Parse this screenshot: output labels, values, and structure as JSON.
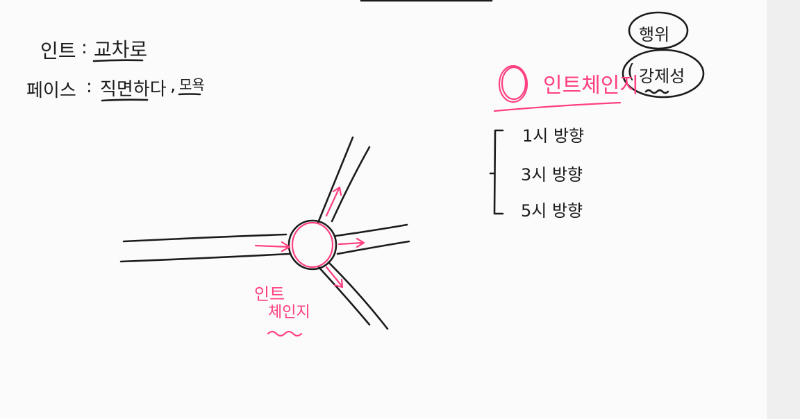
{
  "notes": {
    "intro_label": "인트",
    "intro_sep": ":",
    "intro_value": "교차로",
    "face_label": "페이스",
    "face_sep": ":",
    "face_value_1": "직면하다",
    "face_value_2": "모욕",
    "hangwi": "행위",
    "gangjeseong": "강제성",
    "intro_change": "인트체인지",
    "dir_1": "1시 방향",
    "dir_2": "3시 방향",
    "dir_3": "5시 방향",
    "diagram_label_1": "인트",
    "diagram_label_2": "체인지"
  },
  "colors": {
    "ink": "#1b1b1b",
    "highlight": "#ff3f7f",
    "background": "#fbfbfb"
  }
}
